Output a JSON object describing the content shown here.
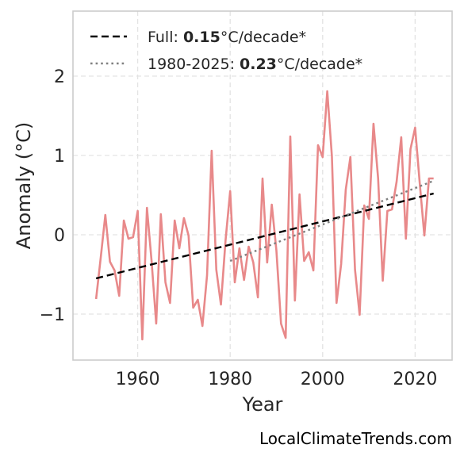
{
  "chart_data": {
    "type": "line",
    "xlabel": "Year",
    "ylabel": "Anomaly (°C)",
    "xlim": [
      1946,
      2028
    ],
    "ylim": [
      -1.58,
      2.82
    ],
    "xticks": [
      1960,
      1980,
      2000,
      2020
    ],
    "yticks": [
      -1,
      0,
      1,
      2
    ],
    "ytick_labels": [
      "−1",
      "0",
      "1",
      "2"
    ],
    "grid": true,
    "legend_position": "top-left",
    "series": [
      {
        "style": "solid",
        "color": "#e8898a",
        "x": [
          1951,
          1952,
          1953,
          1954,
          1955,
          1956,
          1957,
          1958,
          1959,
          1960,
          1961,
          1962,
          1963,
          1964,
          1965,
          1966,
          1967,
          1968,
          1969,
          1970,
          1971,
          1972,
          1973,
          1974,
          1975,
          1976,
          1977,
          1978,
          1979,
          1980,
          1981,
          1982,
          1983,
          1984,
          1985,
          1986,
          1987,
          1988,
          1989,
          1990,
          1991,
          1992,
          1993,
          1994,
          1995,
          1996,
          1997,
          1998,
          1999,
          2000,
          2001,
          2002,
          2003,
          2004,
          2005,
          2006,
          2007,
          2008,
          2009,
          2010,
          2011,
          2012,
          2013,
          2014,
          2015,
          2016,
          2017,
          2018,
          2019,
          2020,
          2021,
          2022,
          2023,
          2024
        ],
        "y": [
          -0.81,
          -0.29,
          0.25,
          -0.34,
          -0.45,
          -0.77,
          0.18,
          -0.05,
          -0.03,
          0.3,
          -1.32,
          0.34,
          -0.33,
          -1.12,
          0.26,
          -0.6,
          -0.86,
          0.18,
          -0.17,
          0.21,
          -0.01,
          -0.92,
          -0.82,
          -1.15,
          -0.51,
          1.06,
          -0.44,
          -0.88,
          -0.07,
          0.55,
          -0.6,
          -0.17,
          -0.57,
          -0.15,
          -0.35,
          -0.79,
          0.71,
          -0.35,
          0.38,
          -0.2,
          -1.12,
          -1.3,
          1.24,
          -0.83,
          0.51,
          -0.33,
          -0.22,
          -0.45,
          1.13,
          0.98,
          1.81,
          0.99,
          -0.86,
          -0.37,
          0.57,
          0.98,
          -0.44,
          -1.01,
          0.37,
          0.2,
          1.4,
          0.71,
          -0.58,
          0.3,
          0.32,
          0.67,
          1.23,
          -0.05,
          1.08,
          1.35,
          0.65,
          -0.01,
          0.71,
          0.71
        ]
      },
      {
        "style": "dashed",
        "color": "#000000",
        "x": [
          1951,
          2024
        ],
        "y": [
          -0.55,
          0.52
        ]
      },
      {
        "style": "dotted",
        "color": "#808080",
        "x": [
          1980,
          2024
        ],
        "y": [
          -0.33,
          0.68
        ]
      }
    ],
    "legend": [
      {
        "prefix": "Full: ",
        "value": "0.15",
        "suffix": "°C/decade*"
      },
      {
        "prefix": "1980-2025: ",
        "value": "0.23",
        "suffix": "°C/decade*"
      }
    ],
    "watermark": "LocalClimateTrends.com"
  }
}
